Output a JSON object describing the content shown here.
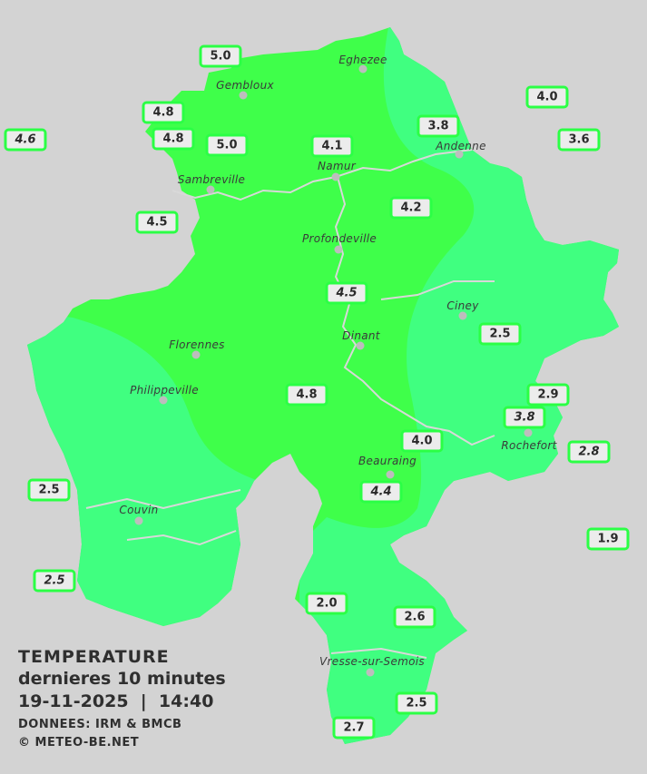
{
  "colors": {
    "zone_warm": "#3fff4a",
    "zone_cool": "#40ff80",
    "background": "#d3d3d3",
    "label_border": "#2bff45"
  },
  "towns": [
    {
      "name": "Eghezee"
    },
    {
      "name": "Gembloux"
    },
    {
      "name": "Andenne"
    },
    {
      "name": "Namur"
    },
    {
      "name": "Sambreville"
    },
    {
      "name": "Profondeville"
    },
    {
      "name": "Ciney"
    },
    {
      "name": "Dinant"
    },
    {
      "name": "Florennes"
    },
    {
      "name": "Philippeville"
    },
    {
      "name": "Rochefort"
    },
    {
      "name": "Beauraing"
    },
    {
      "name": "Couvin"
    },
    {
      "name": "Vresse-sur-Semois"
    }
  ],
  "stations": [
    {
      "value": "5.0",
      "italic": false
    },
    {
      "value": "4.8",
      "italic": false
    },
    {
      "value": "4.6",
      "italic": true
    },
    {
      "value": "4.8",
      "italic": false
    },
    {
      "value": "5.0",
      "italic": false
    },
    {
      "value": "4.1",
      "italic": false
    },
    {
      "value": "3.8",
      "italic": false
    },
    {
      "value": "4.0",
      "italic": false
    },
    {
      "value": "3.6",
      "italic": false
    },
    {
      "value": "4.5",
      "italic": false
    },
    {
      "value": "4.2",
      "italic": false
    },
    {
      "value": "4.5",
      "italic": true
    },
    {
      "value": "2.5",
      "italic": false
    },
    {
      "value": "4.8",
      "italic": false
    },
    {
      "value": "2.9",
      "italic": false
    },
    {
      "value": "3.8",
      "italic": true
    },
    {
      "value": "4.0",
      "italic": false
    },
    {
      "value": "2.8",
      "italic": true
    },
    {
      "value": "4.4",
      "italic": true
    },
    {
      "value": "2.5",
      "italic": false
    },
    {
      "value": "1.9",
      "italic": false
    },
    {
      "value": "2.5",
      "italic": true
    },
    {
      "value": "2.0",
      "italic": false
    },
    {
      "value": "2.6",
      "italic": false
    },
    {
      "value": "2.5",
      "italic": false
    },
    {
      "value": "2.7",
      "italic": false
    }
  ],
  "legend": {
    "title": "TEMPERATURE",
    "subtitle": "dernieres 10 minutes",
    "datetime": "19-11-2025  |  14:40",
    "source": "DONNEES: IRM & BMCB",
    "copyright": "© METEO-BE.NET"
  }
}
